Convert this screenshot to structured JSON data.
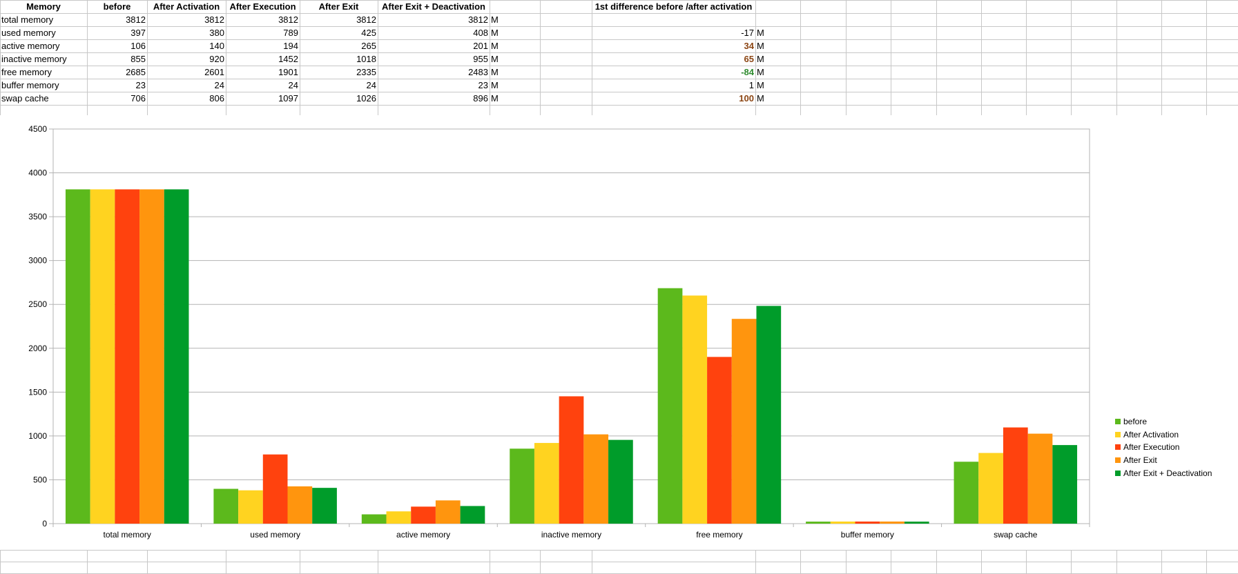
{
  "sheet": {
    "headers": [
      "Memory",
      "before",
      "After Activation",
      "After Execution",
      "After Exit",
      "After Exit + Deactivation",
      "",
      "1st difference before /after activation",
      ""
    ],
    "rows": [
      {
        "label": "total memory",
        "values": [
          "3812",
          "3812",
          "3812",
          "3812",
          "3812"
        ],
        "unit": "M",
        "diff": "",
        "diff_unit": ""
      },
      {
        "label": "used memory",
        "values": [
          "397",
          "380",
          "789",
          "425",
          "408"
        ],
        "unit": "M",
        "diff": "-17",
        "diff_unit": "M"
      },
      {
        "label": "active memory",
        "values": [
          "106",
          "140",
          "194",
          "265",
          "201"
        ],
        "unit": "M",
        "diff": "34",
        "diff_unit": "M"
      },
      {
        "label": "inactive memory",
        "values": [
          "855",
          "920",
          "1452",
          "1018",
          "955"
        ],
        "unit": "M",
        "diff": "65",
        "diff_unit": "M"
      },
      {
        "label": "free memory",
        "values": [
          "2685",
          "2601",
          "1901",
          "2335",
          "2483"
        ],
        "unit": "M",
        "diff": "-84",
        "diff_unit": "M"
      },
      {
        "label": "buffer memory",
        "values": [
          "23",
          "24",
          "24",
          "24",
          "23"
        ],
        "unit": "M",
        "diff": "1",
        "diff_unit": "M"
      },
      {
        "label": "swap cache",
        "values": [
          "706",
          "806",
          "1097",
          "1026",
          "896"
        ],
        "unit": "M",
        "diff": "100",
        "diff_unit": "M"
      }
    ],
    "diff_colors": [
      "#000000",
      "#000000",
      "#8b4513",
      "#8b4513",
      "#2e8b2e",
      "#000000",
      "#8b4513"
    ]
  },
  "chart_data": {
    "type": "bar",
    "categories": [
      "total memory",
      "used memory",
      "active memory",
      "inactive memory",
      "free memory",
      "buffer memory",
      "swap cache"
    ],
    "series": [
      {
        "name": "before",
        "color": "#5cb91c",
        "values": [
          3812,
          397,
          106,
          855,
          2685,
          23,
          706
        ]
      },
      {
        "name": "After Activation",
        "color": "#ffd320",
        "values": [
          3812,
          380,
          140,
          920,
          2601,
          24,
          806
        ]
      },
      {
        "name": "After Execution",
        "color": "#ff420e",
        "values": [
          3812,
          789,
          194,
          1452,
          1901,
          24,
          1097
        ]
      },
      {
        "name": "After Exit",
        "color": "#ff950e",
        "values": [
          3812,
          425,
          265,
          1018,
          2335,
          24,
          1026
        ]
      },
      {
        "name": "After Exit + Deactivation",
        "color": "#009c2a",
        "values": [
          3812,
          408,
          201,
          955,
          2483,
          23,
          896
        ]
      }
    ],
    "yticks": [
      "0",
      "500",
      "1000",
      "1500",
      "2000",
      "2500",
      "3000",
      "3500",
      "4000",
      "4500"
    ],
    "ylim": [
      0,
      4500
    ],
    "grid": true,
    "legend_position": "right",
    "title": "",
    "xlabel": "",
    "ylabel": ""
  }
}
